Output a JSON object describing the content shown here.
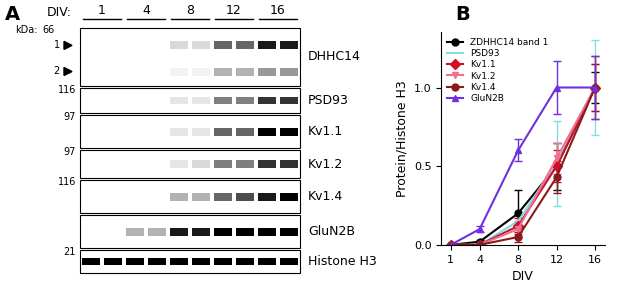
{
  "panel_labels": [
    "A",
    "B"
  ],
  "blot": {
    "div_label": "DIV:",
    "div_values": [
      "1",
      "4",
      "8",
      "12",
      "16"
    ],
    "kda_header": "kDa:",
    "rows": [
      {
        "name": "DHHC14",
        "kda": "66",
        "bands": [
          {
            "label": "1",
            "intensity": [
              0,
              0,
              0,
              0,
              0.15,
              0.15,
              0.6,
              0.6,
              0.9,
              0.9
            ]
          },
          {
            "label": "2",
            "intensity": [
              0,
              0,
              0,
              0,
              0.05,
              0.05,
              0.3,
              0.3,
              0.4,
              0.4
            ]
          }
        ]
      },
      {
        "name": "PSD93",
        "kda": "116",
        "bands": [
          {
            "intensity": [
              0,
              0,
              0,
              0,
              0.1,
              0.1,
              0.5,
              0.5,
              0.8,
              0.8
            ]
          }
        ]
      },
      {
        "name": "Kv1.1",
        "kda": "97",
        "bands": [
          {
            "intensity": [
              0,
              0,
              0,
              0,
              0.1,
              0.1,
              0.6,
              0.6,
              1,
              1
            ]
          }
        ]
      },
      {
        "name": "Kv1.2",
        "kda": "97",
        "bands": [
          {
            "intensity": [
              0,
              0,
              0,
              0,
              0.1,
              0.15,
              0.5,
              0.5,
              0.8,
              0.8
            ]
          }
        ]
      },
      {
        "name": "Kv1.4",
        "kda": "116",
        "bands": [
          {
            "intensity": [
              0,
              0,
              0,
              0,
              0.3,
              0.3,
              0.6,
              0.7,
              0.9,
              1
            ]
          }
        ]
      },
      {
        "name": "GluN2B",
        "bands": [
          {
            "intensity": [
              0,
              0,
              0.3,
              0.3,
              0.9,
              0.9,
              1,
              1,
              1,
              1
            ]
          }
        ]
      },
      {
        "name": "Histone H3",
        "kda": "21",
        "bands": [
          {
            "intensity": [
              1,
              1,
              1,
              1,
              1,
              1,
              1,
              1,
              1,
              1
            ]
          }
        ]
      }
    ]
  },
  "chart_data": {
    "type": "line",
    "x_label": "DIV",
    "y_label": "Protein/Histone H3",
    "x": [
      1,
      4,
      8,
      12,
      16
    ],
    "xlim": [
      0,
      17
    ],
    "xticks": [
      1,
      4,
      8,
      12,
      16
    ],
    "ylim": [
      0,
      1.35
    ],
    "yticks": [
      {
        "value": 0,
        "label": "0.0"
      },
      {
        "value": 0.5,
        "label": "0.5"
      },
      {
        "value": 1.0,
        "label": "1.0"
      }
    ],
    "legend": "upper left",
    "series": [
      {
        "name": "ZDHHC14 band 1",
        "color": "#000000",
        "marker": "circle",
        "values": [
          0,
          0.02,
          0.2,
          0.5,
          1.0
        ],
        "errors": [
          0,
          0.01,
          0.15,
          0.15,
          0.1
        ]
      },
      {
        "name": "PSD93",
        "color": "#7fdde6",
        "marker": "none",
        "values": [
          0,
          0,
          0.15,
          0.52,
          1.0
        ],
        "errors": [
          0,
          0,
          0.05,
          0.27,
          0.3
        ]
      },
      {
        "name": "Kv1.1",
        "color": "#d0102a",
        "marker": "diamond",
        "values": [
          0,
          0,
          0.12,
          0.5,
          1.0
        ],
        "errors": [
          0,
          0,
          0.05,
          0.1,
          0.2
        ]
      },
      {
        "name": "Kv1.2",
        "color": "#f07090",
        "marker": "triangle_down",
        "values": [
          0,
          0,
          0.1,
          0.55,
          1.0
        ],
        "errors": [
          0,
          0,
          0.05,
          0.1,
          0.15
        ]
      },
      {
        "name": "Kv1.4",
        "color": "#8b1a1a",
        "marker": "circle",
        "values": [
          0,
          0,
          0.05,
          0.43,
          1.0
        ],
        "errors": [
          0,
          0,
          0.03,
          0.1,
          0.15
        ]
      },
      {
        "name": "GluN2B",
        "color": "#7030e0",
        "marker": "triangle_up",
        "values": [
          0,
          0.1,
          0.6,
          1.0,
          1.0
        ],
        "errors": [
          0,
          0.02,
          0.07,
          0.17,
          0.2
        ]
      }
    ]
  }
}
